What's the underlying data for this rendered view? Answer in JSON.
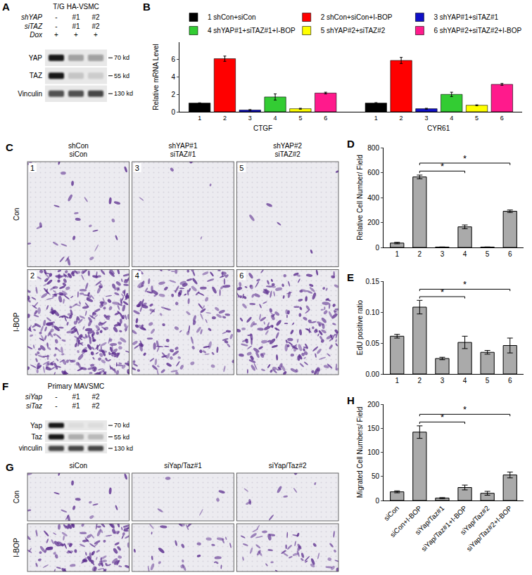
{
  "chart_data": [
    {
      "panel": "B",
      "type": "bar",
      "y_label": "Relative mRNA Level",
      "categories": [
        "CTGF",
        "CYR61"
      ],
      "series": [
        {
          "name": "1 shCon+siCon",
          "label": "1",
          "color": "#000000",
          "values": [
            1.0,
            1.0
          ],
          "errors": [
            0.03,
            0.05
          ]
        },
        {
          "name": "2 shCon+siCon+I-BOP",
          "label": "2",
          "color": "#ff0000",
          "values": [
            6.1,
            5.9
          ],
          "errors": [
            0.3,
            0.35
          ]
        },
        {
          "name": "3 shYAP#1+siTAZ#1",
          "label": "3",
          "color": "#1010c8",
          "values": [
            0.2,
            0.35
          ],
          "errors": [
            0.05,
            0.05
          ]
        },
        {
          "name": "4 shYAP#1+siTAZ#1+I-BOP",
          "label": "4",
          "color": "#33cc33",
          "values": [
            1.7,
            2.0
          ],
          "errors": [
            0.35,
            0.25
          ]
        },
        {
          "name": "5 shYAP#2+siTAZ#2",
          "label": "5",
          "color": "#ffff00",
          "values": [
            0.35,
            0.75
          ],
          "errors": [
            0.05,
            0.05
          ]
        },
        {
          "name": "6 shYAP#2+siTAZ#2+I-BOP",
          "label": "6",
          "color": "#ff1a8c",
          "values": [
            2.15,
            3.15
          ],
          "errors": [
            0.1,
            0.1
          ]
        }
      ],
      "ylim": [
        0,
        8
      ],
      "yticks": [
        0,
        2,
        4,
        6
      ],
      "grid": false,
      "legend": "top"
    },
    {
      "panel": "D",
      "type": "bar",
      "y_label": "Relative Cell Number/ Field",
      "categories": [
        "1",
        "2",
        "3",
        "4",
        "5",
        "6"
      ],
      "values": [
        35,
        565,
        3,
        165,
        3,
        290
      ],
      "errors": [
        6,
        15,
        1,
        15,
        1,
        10
      ],
      "color": "#aaaaaa",
      "ylim": [
        0,
        800
      ],
      "yticks": [
        0,
        200,
        400,
        600,
        800
      ],
      "grid": false,
      "significance": [
        {
          "from": "2",
          "to": "4",
          "label": "*"
        },
        {
          "from": "2",
          "to": "6",
          "label": "*"
        }
      ]
    },
    {
      "panel": "E",
      "type": "bar",
      "y_label": "EdU positive ratio",
      "categories": [
        "1",
        "2",
        "3",
        "4",
        "5",
        "6"
      ],
      "values": [
        0.061,
        0.108,
        0.025,
        0.051,
        0.035,
        0.046
      ],
      "errors": [
        0.003,
        0.011,
        0.002,
        0.01,
        0.003,
        0.012
      ],
      "color": "#aaaaaa",
      "ylim": [
        0,
        0.15
      ],
      "yticks": [
        {
          "value": 0,
          "label": "0.00"
        },
        {
          "value": 0.05,
          "label": "0.05"
        },
        {
          "value": 0.1,
          "label": "0.10"
        },
        {
          "value": 0.15,
          "label": "0.15"
        }
      ],
      "grid": false,
      "significance": [
        {
          "from": "2",
          "to": "4",
          "label": "*"
        },
        {
          "from": "2",
          "to": "6",
          "label": "*"
        }
      ]
    },
    {
      "panel": "H",
      "type": "bar",
      "y_label": "Migrated Cell Numbers/ Field",
      "categories": [
        "siCon",
        "siCon+I-BOP",
        "siYap/Taz#1",
        "siYap/Taz#1+I-BOP",
        "siYap/Taz#2",
        "siYap/Taz#2+I-BOP"
      ],
      "values": [
        18,
        142,
        5,
        27,
        15,
        53
      ],
      "errors": [
        2,
        13,
        1,
        5,
        4,
        6
      ],
      "color": "#aaaaaa",
      "ylim": [
        0,
        200
      ],
      "yticks": [
        0,
        50,
        100,
        150,
        200
      ],
      "grid": false,
      "significance": [
        {
          "from": "siCon+I-BOP",
          "to": "siYap/Taz#1+I-BOP",
          "label": "*"
        },
        {
          "from": "siCon+I-BOP",
          "to": "siYap/Taz#2+I-BOP",
          "label": "*"
        }
      ]
    }
  ],
  "blots": [
    {
      "panel": "A",
      "title": "T/G HA-VSMC",
      "conditions": [
        {
          "label": "shYAP",
          "lanes": [
            "-",
            "#1",
            "#2"
          ]
        },
        {
          "label": "siTAZ",
          "lanes": [
            "-",
            "#1",
            "#2"
          ]
        },
        {
          "label": "Dox",
          "lanes": [
            "+",
            "+",
            "+"
          ]
        }
      ],
      "bands": [
        {
          "label": "YAP",
          "size": "70 kd",
          "intensity": [
            0.95,
            0.3,
            0.35
          ]
        },
        {
          "label": "TAZ",
          "size": "55 kd",
          "intensity": [
            0.95,
            0.15,
            0.12
          ]
        },
        {
          "label": "Vinculin",
          "size": "130 kd",
          "intensity": [
            0.7,
            0.7,
            0.75
          ]
        }
      ]
    },
    {
      "panel": "F",
      "title": "Primary MAVSMC",
      "conditions": [
        {
          "label": "siYap",
          "lanes": [
            "-",
            "#1",
            "#2"
          ]
        },
        {
          "label": "siTaz",
          "lanes": [
            "-",
            "#1",
            "#2"
          ]
        }
      ],
      "bands": [
        {
          "label": "Yap",
          "size": "70 kd",
          "intensity": [
            0.95,
            0.05,
            0.05
          ]
        },
        {
          "label": "Taz",
          "size": "55 kd",
          "intensity": [
            0.95,
            0.25,
            0.2
          ]
        },
        {
          "label": "vinculin",
          "size": "130 kd",
          "intensity": [
            0.75,
            0.75,
            0.75
          ]
        }
      ]
    }
  ],
  "micrographs": [
    {
      "panel": "C",
      "columns": [
        [
          "shCon",
          "siCon"
        ],
        [
          "shYAP#1",
          "siTAZ#1"
        ],
        [
          "shYAP#2",
          "siTAZ#2"
        ]
      ],
      "rows": [
        "Con",
        "I-BOP"
      ],
      "tile_labels": [
        [
          "1",
          "3",
          "5"
        ],
        [
          "2",
          "4",
          "6"
        ]
      ],
      "density": [
        [
          0.08,
          0.015,
          0.015
        ],
        [
          1.0,
          0.45,
          0.6
        ]
      ]
    },
    {
      "panel": "G",
      "columns": [
        [
          "siCon"
        ],
        [
          "siYap/Taz#1"
        ],
        [
          "siYap/Taz#2"
        ]
      ],
      "rows": [
        "Con",
        "I-BOP"
      ],
      "density": [
        [
          0.1,
          0.03,
          0.06
        ],
        [
          0.7,
          0.2,
          0.3
        ]
      ]
    }
  ]
}
